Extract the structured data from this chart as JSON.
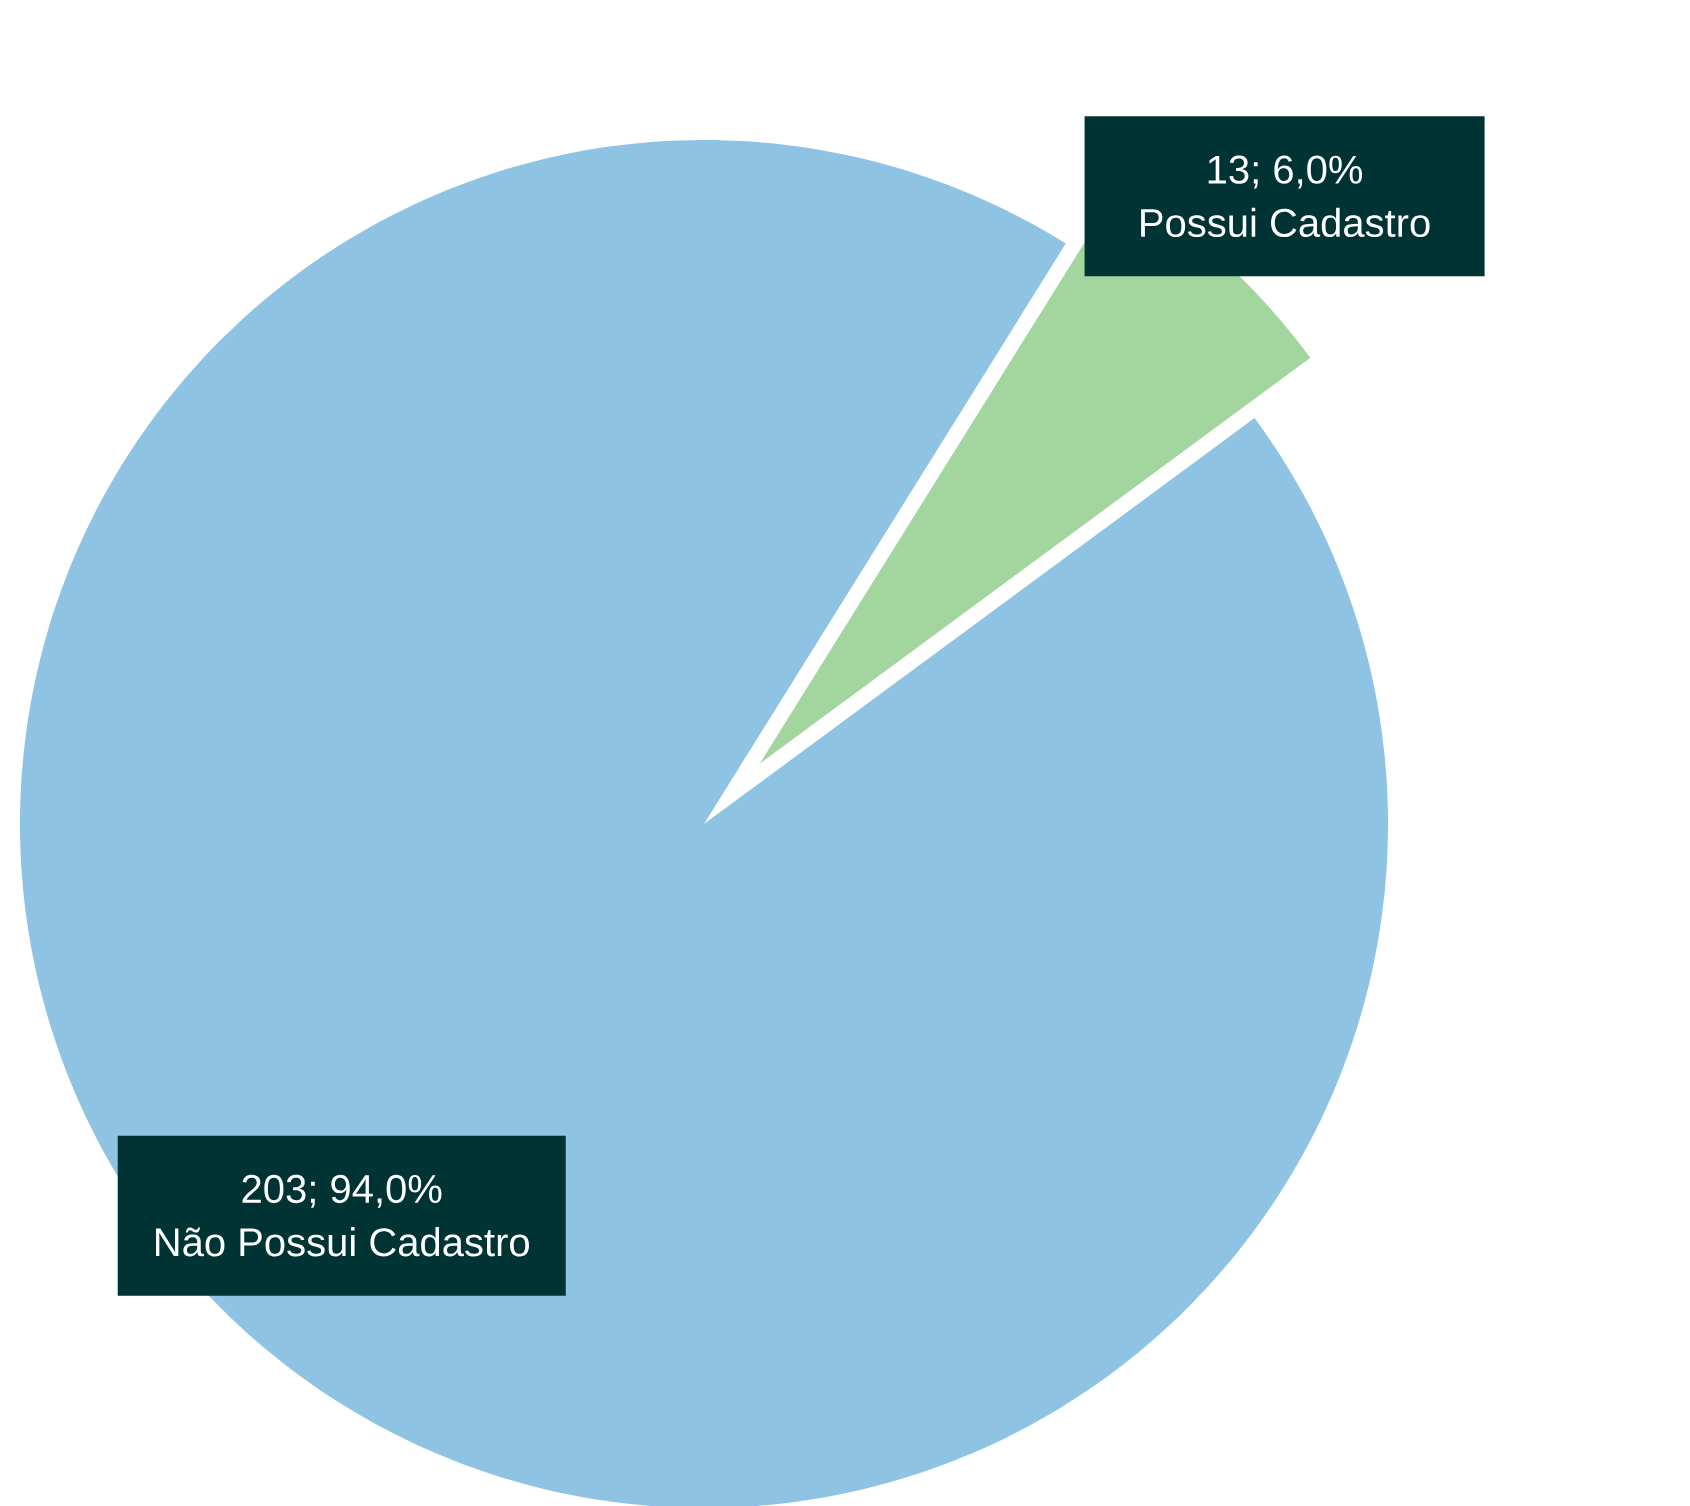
{
  "chart_data": {
    "type": "pie",
    "categories": [
      "Não Possui Cadastro",
      "Possui Cadastro"
    ],
    "values": [
      203,
      13
    ],
    "colors": [
      "#8ec3e3",
      "#a3d69e"
    ],
    "value_labels": [
      "203; 94,0%",
      "13; 6,0%"
    ]
  }
}
